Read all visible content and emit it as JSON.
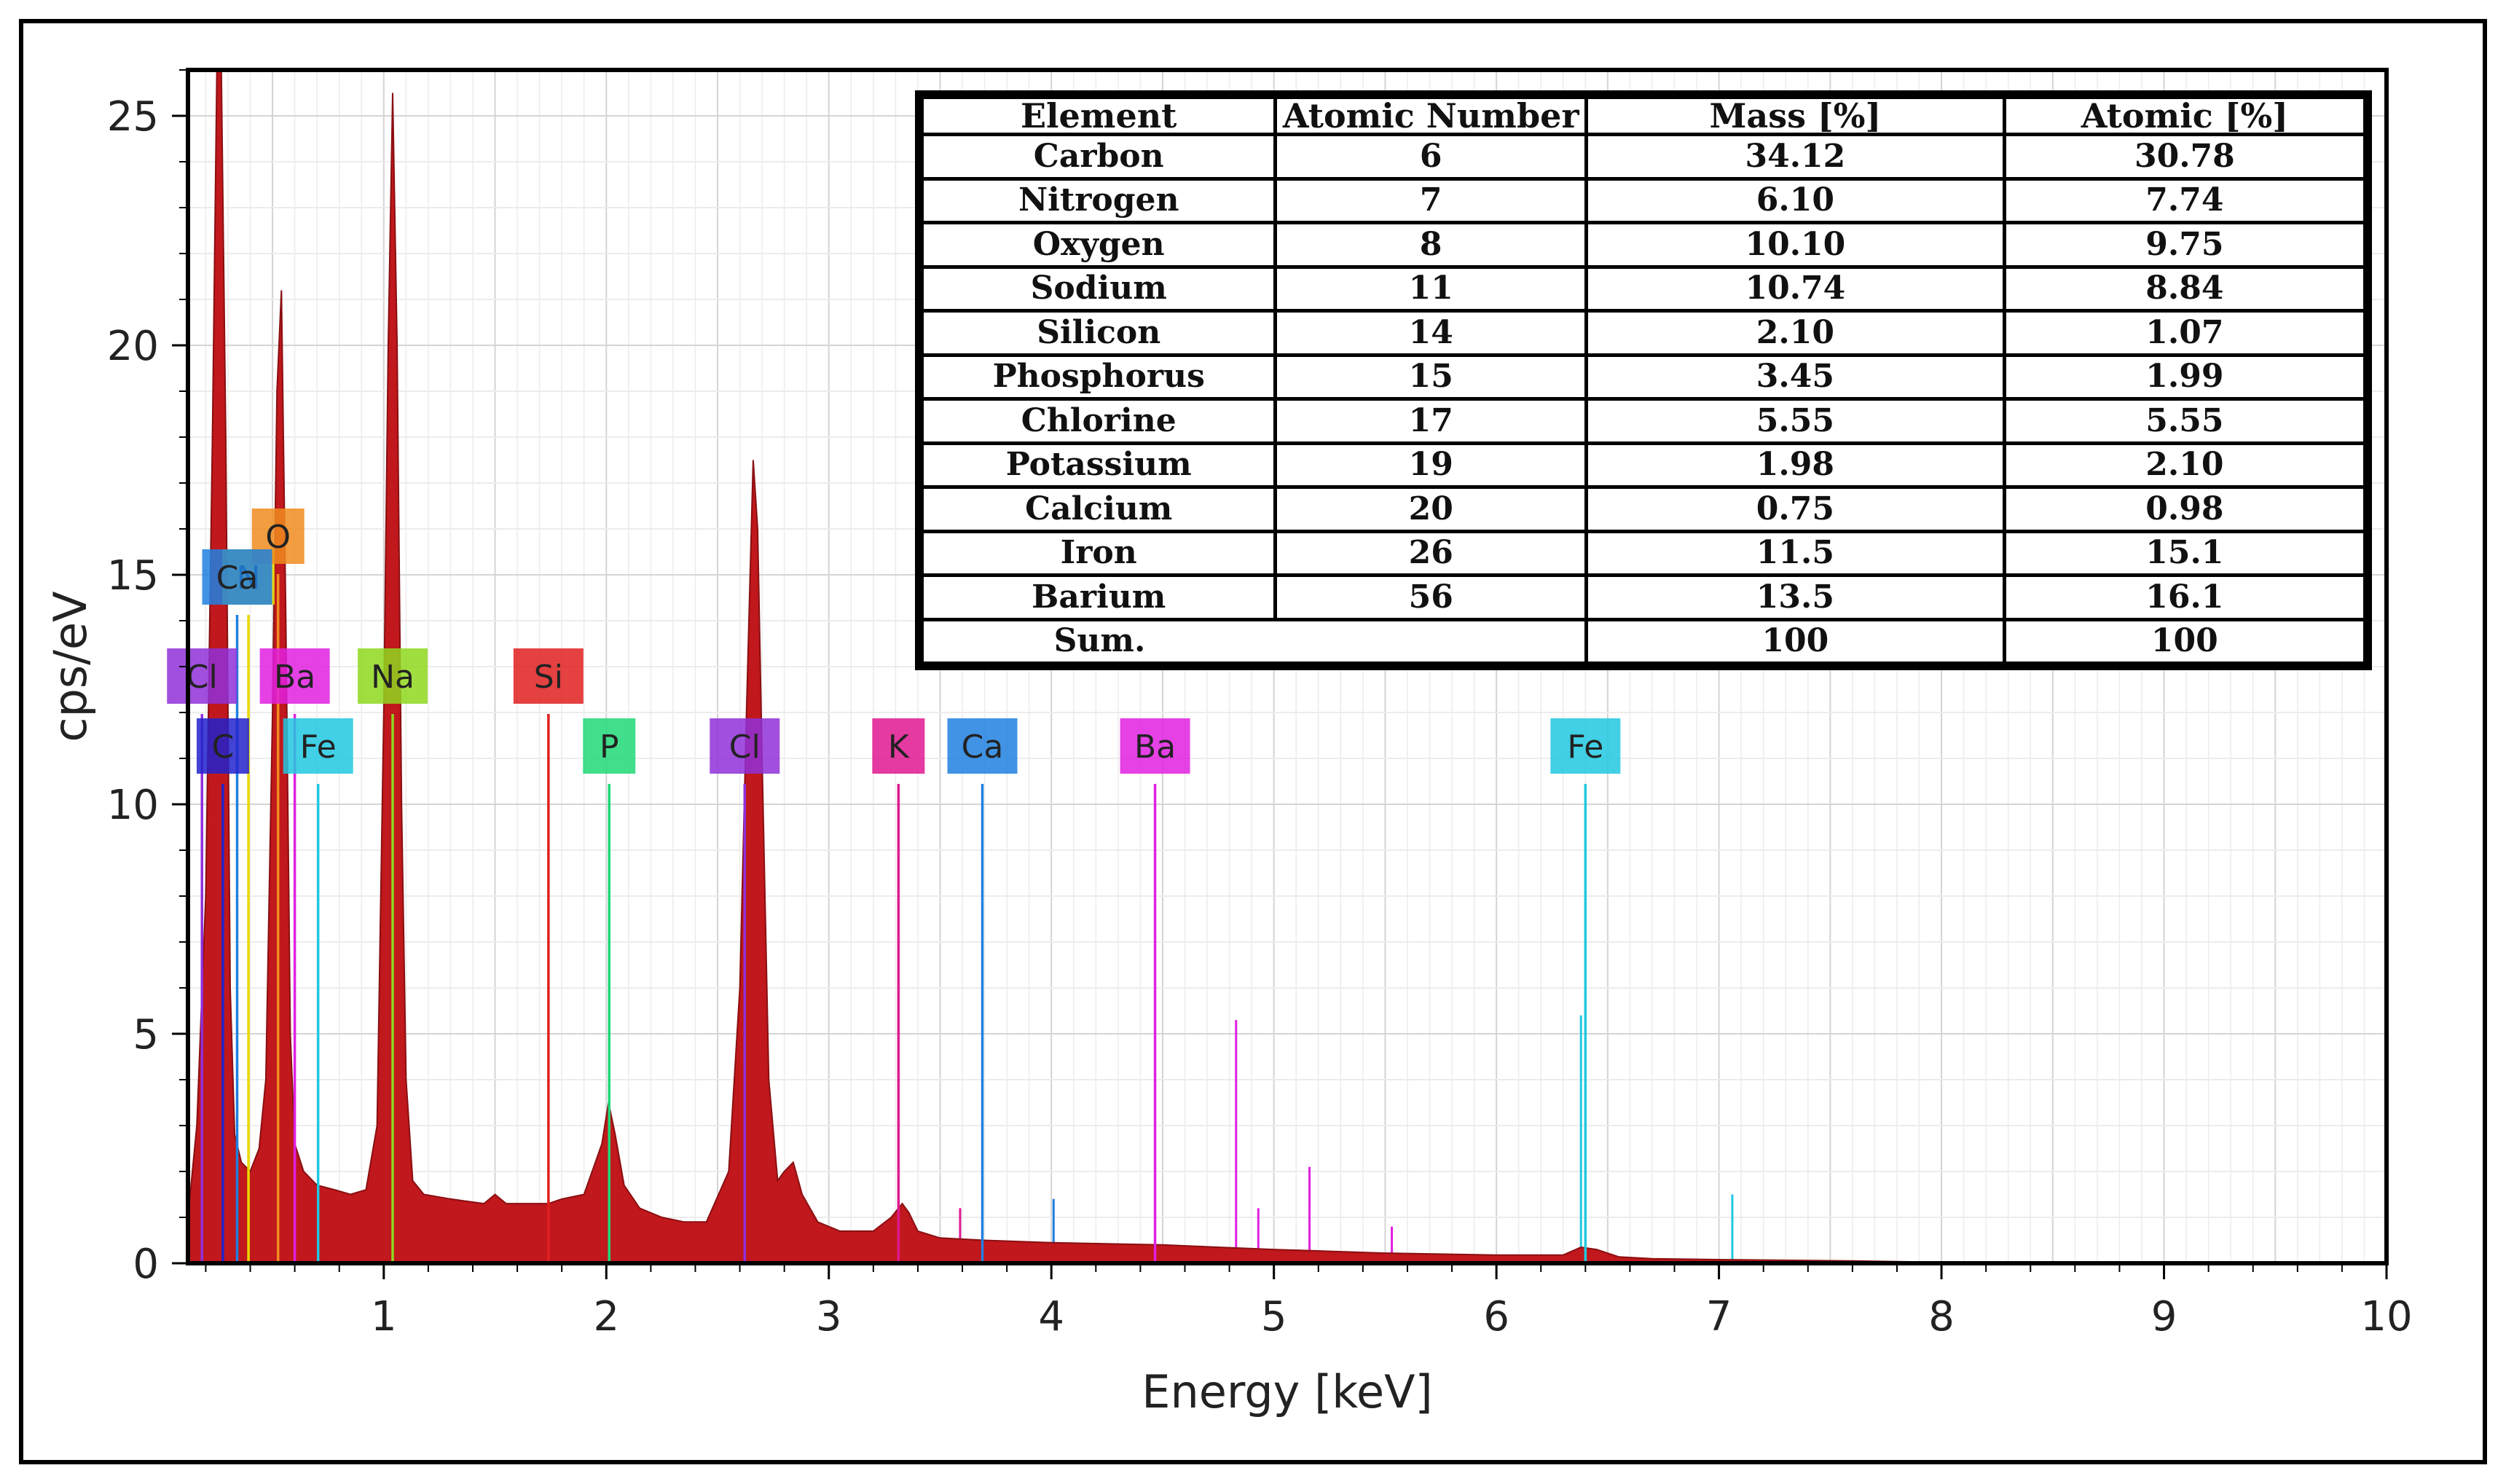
{
  "chart_data": {
    "type": "line",
    "title": "",
    "xlabel": "Energy [keV]",
    "ylabel": "cps/eV",
    "xlim": [
      0.12,
      10
    ],
    "ylim": [
      0,
      26
    ],
    "xticks": [
      "1",
      "2",
      "3",
      "4",
      "5",
      "6",
      "7",
      "8",
      "9",
      "10"
    ],
    "yticks": [
      "0",
      "5",
      "10",
      "15",
      "20",
      "25"
    ],
    "grid": true,
    "spectrum": {
      "name": "EDS spectrum",
      "color": "#c0181c",
      "x": [
        0.12,
        0.16,
        0.2,
        0.23,
        0.25,
        0.27,
        0.29,
        0.31,
        0.33,
        0.36,
        0.4,
        0.44,
        0.47,
        0.5,
        0.52,
        0.54,
        0.56,
        0.58,
        0.6,
        0.64,
        0.7,
        0.78,
        0.85,
        0.92,
        0.97,
        1.0,
        1.02,
        1.04,
        1.06,
        1.08,
        1.1,
        1.13,
        1.18,
        1.3,
        1.45,
        1.5,
        1.55,
        1.7,
        1.74,
        1.8,
        1.9,
        1.98,
        2.01,
        2.04,
        2.08,
        2.15,
        2.25,
        2.35,
        2.45,
        2.55,
        2.6,
        2.63,
        2.66,
        2.68,
        2.7,
        2.73,
        2.77,
        2.8,
        2.84,
        2.88,
        2.95,
        3.05,
        3.2,
        3.28,
        3.33,
        3.36,
        3.4,
        3.5,
        3.7,
        4.0,
        4.5,
        5.0,
        5.5,
        6.0,
        6.3,
        6.38,
        6.45,
        6.55,
        6.7,
        7.0,
        7.6,
        8.0,
        10.0
      ],
      "y": [
        1.0,
        3.0,
        8.0,
        18.0,
        26.0,
        26.0,
        18.0,
        6.0,
        2.8,
        2.2,
        2.0,
        2.5,
        4.0,
        12.0,
        19.0,
        21.2,
        14.0,
        5.0,
        2.6,
        2.0,
        1.7,
        1.6,
        1.5,
        1.6,
        3.0,
        12.0,
        20.0,
        25.5,
        20.0,
        10.0,
        4.0,
        1.8,
        1.5,
        1.4,
        1.3,
        1.5,
        1.3,
        1.3,
        1.3,
        1.4,
        1.5,
        2.6,
        3.5,
        2.8,
        1.7,
        1.2,
        1.0,
        0.9,
        0.9,
        2.0,
        6.0,
        12.0,
        17.5,
        16.0,
        11.0,
        4.0,
        1.8,
        2.0,
        2.2,
        1.5,
        0.9,
        0.7,
        0.7,
        1.0,
        1.3,
        1.1,
        0.7,
        0.55,
        0.5,
        0.45,
        0.4,
        0.3,
        0.22,
        0.18,
        0.18,
        0.35,
        0.3,
        0.14,
        0.1,
        0.08,
        0.05,
        0.02,
        0.0
      ]
    },
    "element_lines": [
      {
        "symbol": "C",
        "energy": 0.277,
        "color": "#2222cc",
        "row": 3
      },
      {
        "symbol": "N",
        "energy": 0.392,
        "color": "#e8d800",
        "row": 1
      },
      {
        "symbol": "O",
        "energy": 0.525,
        "color": "#f08c1e",
        "row": 0
      },
      {
        "symbol": "Na",
        "energy": 1.04,
        "color": "#8fd81e",
        "row": 2
      },
      {
        "symbol": "Si",
        "energy": 1.74,
        "color": "#e02020",
        "row": 2
      },
      {
        "symbol": "P",
        "energy": 2.013,
        "color": "#20d878",
        "row": 3
      },
      {
        "symbol": "Cl",
        "energy": 2.622,
        "color": "#9030d8",
        "row": 3
      },
      {
        "symbol": "K",
        "energy": 3.313,
        "color": "#e01890",
        "row": 3
      },
      {
        "symbol": "Ca",
        "energy": 3.69,
        "color": "#2080e0",
        "row": 3
      },
      {
        "symbol": "Ba",
        "energy": 4.466,
        "color": "#e020e0",
        "row": 3
      },
      {
        "symbol": "Fe",
        "energy": 6.4,
        "color": "#20c8e0",
        "row": 3
      },
      {
        "symbol": "Cl",
        "energy": 0.183,
        "color": "#9030d8",
        "row": 2
      },
      {
        "symbol": "Ca",
        "energy": 0.341,
        "color": "#2080e0",
        "row": 1
      },
      {
        "symbol": "Ba",
        "energy": 0.6,
        "color": "#e020e0",
        "row": 2
      },
      {
        "symbol": "Fe",
        "energy": 0.705,
        "color": "#20c8e0",
        "row": 3
      }
    ],
    "extra_minor_lines": [
      {
        "energy": 4.83,
        "height": 5.3,
        "color": "#e020e0"
      },
      {
        "energy": 4.93,
        "height": 1.2,
        "color": "#e020e0"
      },
      {
        "energy": 5.16,
        "height": 2.1,
        "color": "#e020e0"
      },
      {
        "energy": 5.53,
        "height": 0.8,
        "color": "#e020e0"
      },
      {
        "energy": 4.01,
        "height": 1.4,
        "color": "#2080e0"
      },
      {
        "energy": 3.59,
        "height": 1.2,
        "color": "#e01890"
      },
      {
        "energy": 7.06,
        "height": 1.5,
        "color": "#20c8e0"
      },
      {
        "energy": 6.38,
        "height": 5.4,
        "color": "#20c8e0"
      }
    ],
    "table": {
      "headers": [
        "Element",
        "Atomic Number",
        "Mass [%]",
        "Atomic [%]"
      ],
      "rows": [
        [
          "Carbon",
          "6",
          "34.12",
          "30.78"
        ],
        [
          "Nitrogen",
          "7",
          "6.10",
          "7.74"
        ],
        [
          "Oxygen",
          "8",
          "10.10",
          "9.75"
        ],
        [
          "Sodium",
          "11",
          "10.74",
          "8.84"
        ],
        [
          "Silicon",
          "14",
          "2.10",
          "1.07"
        ],
        [
          "Phosphorus",
          "15",
          "3.45",
          "1.99"
        ],
        [
          "Chlorine",
          "17",
          "5.55",
          "5.55"
        ],
        [
          "Potassium",
          "19",
          "1.98",
          "2.10"
        ],
        [
          "Calcium",
          "20",
          "0.75",
          "0.98"
        ],
        [
          "Iron",
          "26",
          "11.5",
          "15.1"
        ],
        [
          "Barium",
          "56",
          "13.5",
          "16.1"
        ]
      ],
      "sum_row": [
        "Sum.",
        "",
        "100",
        "100"
      ]
    }
  }
}
